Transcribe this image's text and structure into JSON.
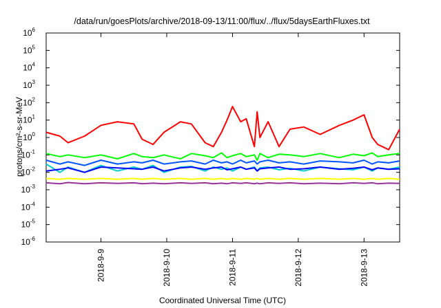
{
  "chart_data": {
    "type": "line",
    "title": "/data/run/goesPlots/archive/2018-09-13/11:00/flux/../flux/5daysEarthFluxes.txt",
    "xlabel": "Coordinated Universal Time (UTC)",
    "ylabel": "protons/cm²-s-sr-MeV",
    "y_scale": "log",
    "ylim": [
      1e-06,
      1000000.0
    ],
    "xlim": [
      "2018-09-08 04:00",
      "2018-09-13 13:00"
    ],
    "x_ticks": [
      "2018-9-9",
      "2018-9-10",
      "2018-9-11",
      "2018-9-12",
      "2018-9-13"
    ],
    "y_ticks": [
      -6,
      -5,
      -4,
      -3,
      -2,
      -1,
      0,
      1,
      2,
      3,
      4,
      5,
      6
    ],
    "legend": "none",
    "grid": false,
    "x": [
      "2018-09-08 04:00",
      "2018-09-08 09:00",
      "2018-09-08 12:00",
      "2018-09-08 18:00",
      "2018-09-09 00:00",
      "2018-09-09 06:00",
      "2018-09-09 12:00",
      "2018-09-09 15:00",
      "2018-09-09 19:00",
      "2018-09-09 23:00",
      "2018-09-10 05:00",
      "2018-09-10 09:00",
      "2018-09-10 14:00",
      "2018-09-10 17:00",
      "2018-09-10 20:00",
      "2018-09-10 22:00",
      "2018-09-11 00:00",
      "2018-09-11 03:00",
      "2018-09-11 05:00",
      "2018-09-11 08:00",
      "2018-09-11 09:00",
      "2018-09-11 10:00",
      "2018-09-11 13:00",
      "2018-09-11 17:00",
      "2018-09-11 21:00",
      "2018-09-12 02:00",
      "2018-09-12 08:00",
      "2018-09-12 15:00",
      "2018-09-12 20:00",
      "2018-09-13 00:00",
      "2018-09-13 03:00",
      "2018-09-13 05:00",
      "2018-09-13 09:00",
      "2018-09-13 13:00"
    ],
    "series": [
      {
        "color": "#ff0000",
        "values": [
          2,
          1.2,
          0.5,
          1.2,
          5,
          8,
          6,
          0.8,
          0.4,
          2,
          8,
          6,
          0.5,
          0.3,
          2,
          10,
          60,
          8,
          12,
          0.3,
          30,
          1,
          8,
          0.3,
          3,
          4,
          1.5,
          5,
          10,
          20,
          1,
          0.4,
          0.2,
          3
        ]
      },
      {
        "color": "#00ff00",
        "values": [
          0.12,
          0.08,
          0.1,
          0.07,
          0.1,
          0.06,
          0.12,
          0.08,
          0.07,
          0.1,
          0.06,
          0.12,
          0.09,
          0.07,
          0.13,
          0.07,
          0.09,
          0.12,
          0.08,
          0.1,
          0.05,
          0.12,
          0.07,
          0.11,
          0.1,
          0.08,
          0.12,
          0.07,
          0.11,
          0.09,
          0.13,
          0.08,
          0.1,
          0.12
        ]
      },
      {
        "color": "#0055ff",
        "values": [
          0.05,
          0.03,
          0.04,
          0.025,
          0.05,
          0.03,
          0.04,
          0.035,
          0.05,
          0.03,
          0.04,
          0.045,
          0.03,
          0.05,
          0.035,
          0.04,
          0.03,
          0.05,
          0.035,
          0.045,
          0.03,
          0.04,
          0.05,
          0.035,
          0.04,
          0.03,
          0.045,
          0.04,
          0.035,
          0.05,
          0.03,
          0.04,
          0.035,
          0.045
        ]
      },
      {
        "color": "#00cccc",
        "values": [
          0.03,
          0.01,
          0.02,
          0.01,
          0.025,
          0.012,
          0.02,
          0.015,
          0.025,
          0.01,
          0.02,
          0.022,
          0.012,
          0.02,
          0.015,
          0.018,
          0.012,
          0.02,
          0.015,
          0.02,
          0.012,
          0.018,
          0.02,
          0.014,
          0.017,
          0.012,
          0.02,
          0.016,
          0.014,
          0.02,
          0.012,
          0.018,
          0.015,
          0.02
        ]
      },
      {
        "color": "#0000ff",
        "values": [
          0.012,
          0.015,
          0.018,
          0.01,
          0.02,
          0.018,
          0.016,
          0.015,
          0.02,
          0.012,
          0.018,
          0.02,
          0.015,
          0.018,
          0.02,
          0.014,
          0.016,
          0.02,
          0.015,
          0.018,
          0.012,
          0.016,
          0.018,
          0.02,
          0.015,
          0.016,
          0.02,
          0.015,
          0.017,
          0.02,
          0.014,
          0.018,
          0.015,
          0.016
        ]
      },
      {
        "color": "#ffff00",
        "values": [
          0.0045,
          0.004,
          0.0045,
          0.004,
          0.0045,
          0.004,
          0.0045,
          0.004,
          0.0045,
          0.004,
          0.0045,
          0.004,
          0.0045,
          0.004,
          0.0045,
          0.004,
          0.0045,
          0.004,
          0.0045,
          0.004,
          0.0045,
          0.004,
          0.0045,
          0.004,
          0.0045,
          0.004,
          0.0045,
          0.004,
          0.0045,
          0.004,
          0.0045,
          0.004,
          0.0045,
          0.004
        ]
      },
      {
        "color": "#993399",
        "values": [
          0.0025,
          0.0022,
          0.0026,
          0.0022,
          0.0025,
          0.0023,
          0.0025,
          0.0022,
          0.0024,
          0.0022,
          0.0025,
          0.0023,
          0.0025,
          0.0022,
          0.0024,
          0.0022,
          0.0025,
          0.0023,
          0.0025,
          0.0022,
          0.0024,
          0.0022,
          0.0025,
          0.0023,
          0.0025,
          0.0022,
          0.0024,
          0.0022,
          0.0025,
          0.0023,
          0.0025,
          0.0022,
          0.0024,
          0.0023
        ]
      }
    ]
  }
}
